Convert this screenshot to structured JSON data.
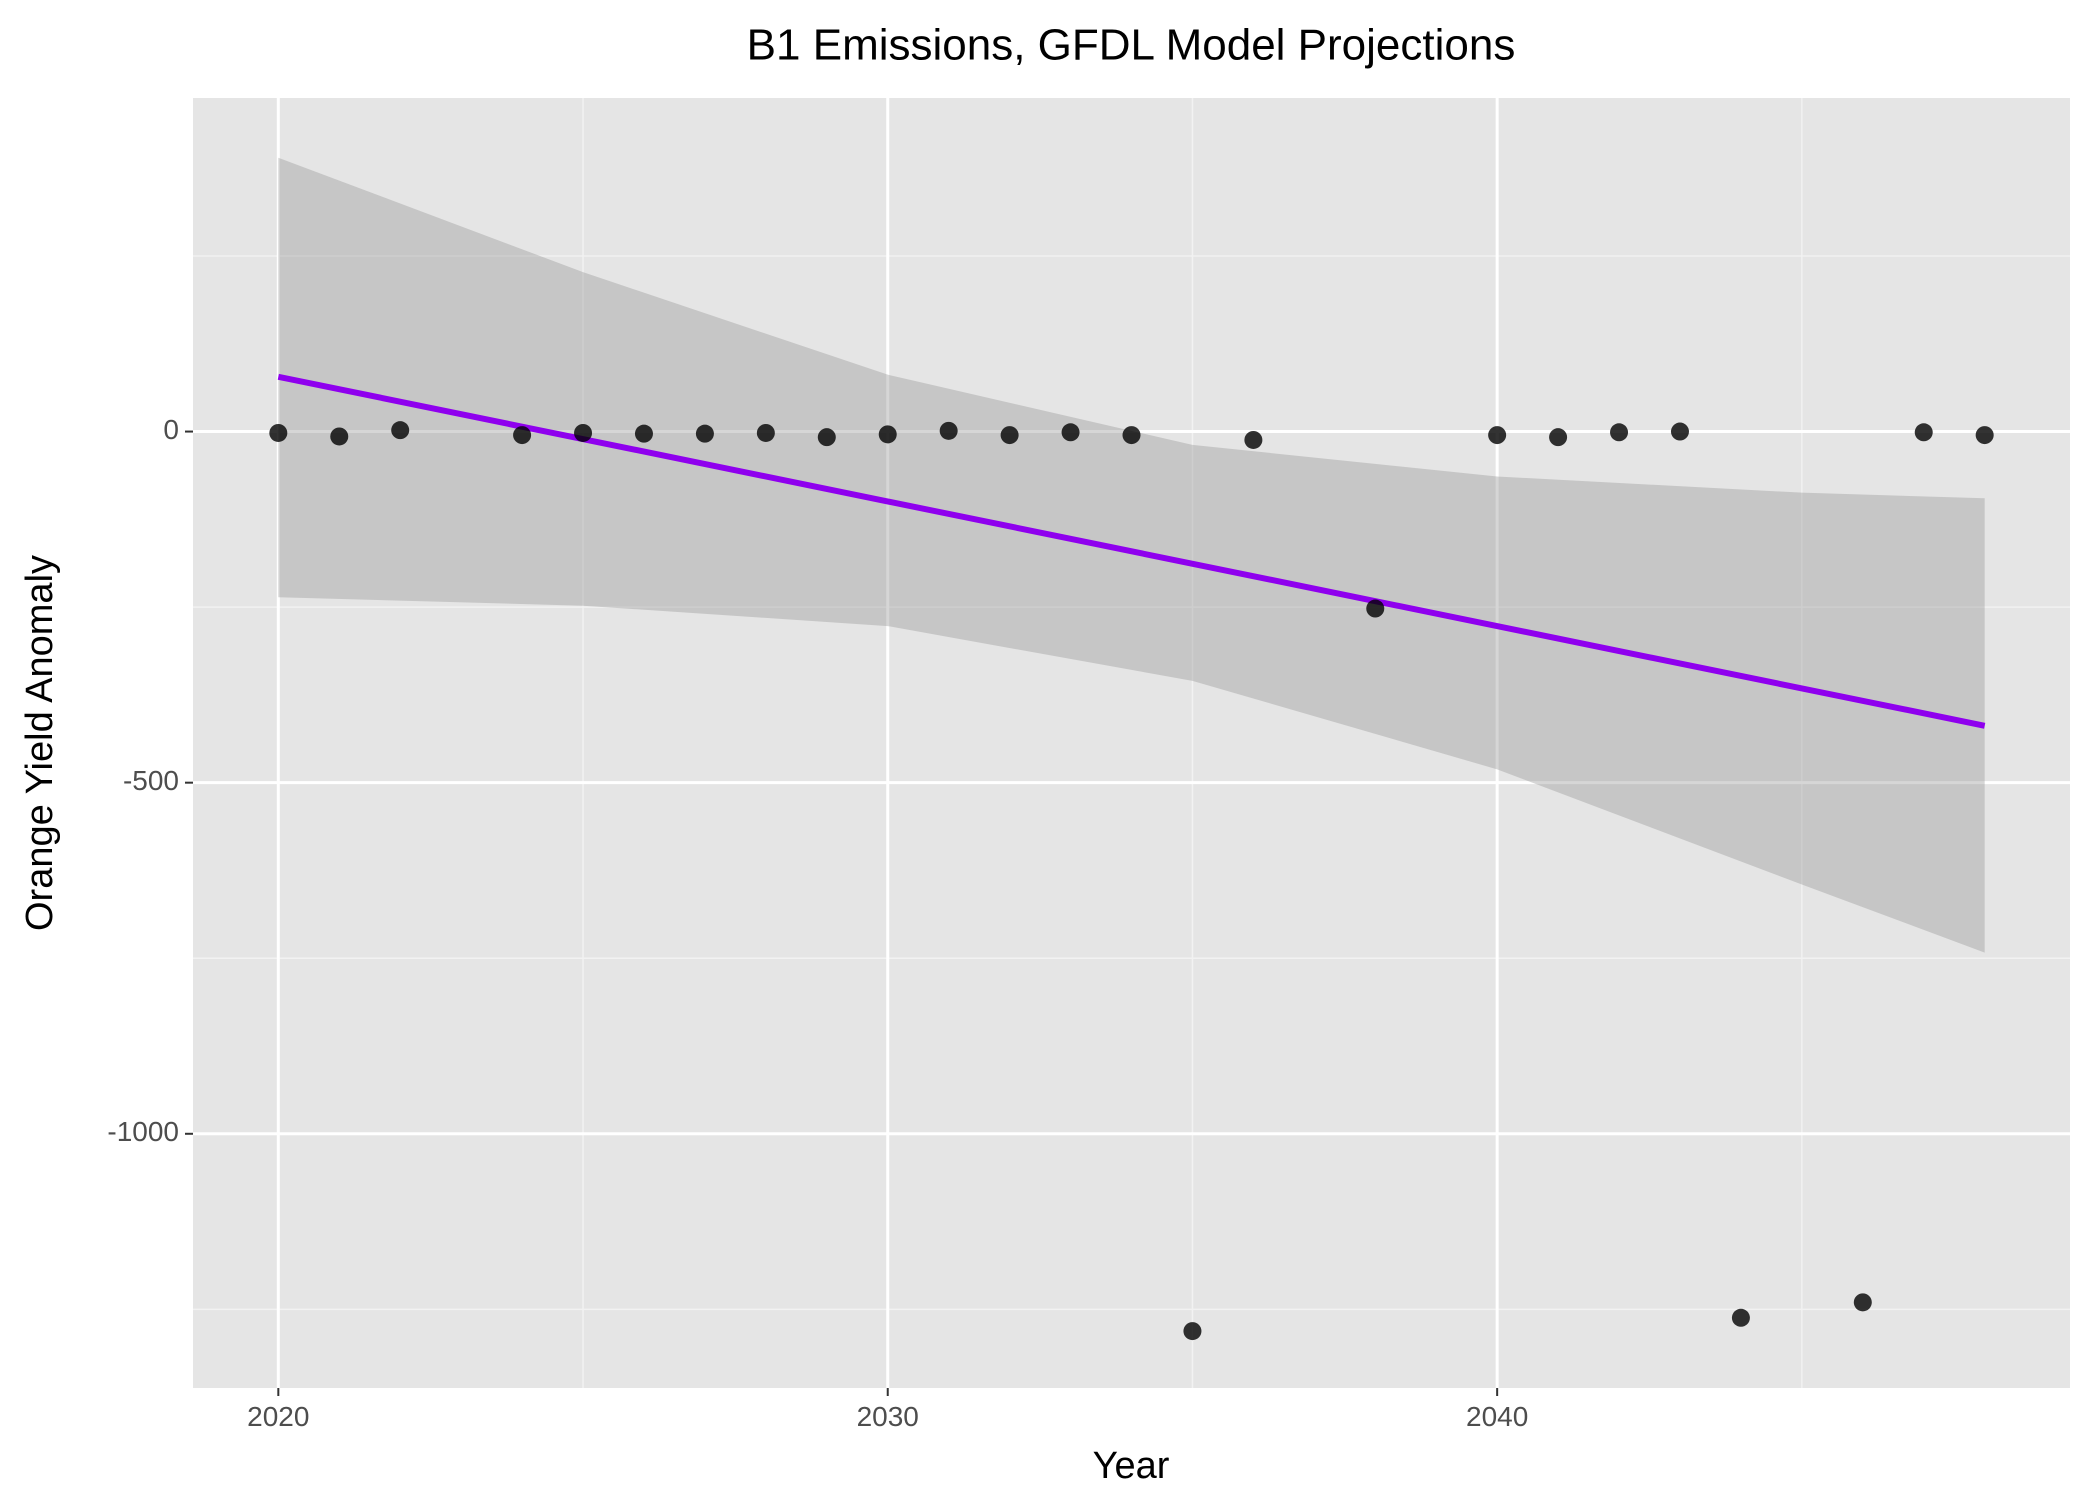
{
  "chart_data": {
    "type": "scatter",
    "title": "B1 Emissions, GFDL Model Projections",
    "xlabel": "Year",
    "ylabel": "Orange Yield Anomaly",
    "x": [
      2020,
      2021,
      2022,
      2024,
      2025,
      2026,
      2027,
      2028,
      2029,
      2030,
      2031,
      2032,
      2033,
      2034,
      2035,
      2036,
      2038,
      2040,
      2041,
      2042,
      2043,
      2044,
      2046,
      2047,
      2048
    ],
    "values": [
      -2,
      -7,
      2,
      -5,
      -2,
      -3,
      -3,
      -2,
      -8,
      -4,
      1,
      -5,
      -1,
      -5,
      -1281,
      -12,
      -252,
      -5,
      -8,
      -1,
      0,
      -1262,
      -1240,
      -1,
      -5
    ],
    "color": "#000000",
    "fit": {
      "x": [
        2020,
        2048
      ],
      "values": [
        78,
        -419
      ],
      "color": "#8f00ee"
    },
    "band": {
      "x": [
        2020,
        2025,
        2030,
        2035,
        2040,
        2045,
        2048
      ],
      "upper": [
        390,
        227,
        81,
        -19,
        -64,
        -87,
        -95
      ],
      "lower": [
        -236,
        -248,
        -277,
        -355,
        -481,
        -645,
        -742
      ],
      "color": "#999999"
    },
    "xlim": [
      2018.6,
      2049.4
    ],
    "ylim": [
      -1362,
      475
    ],
    "xticks": [
      2020,
      2030,
      2040
    ],
    "yticks": [
      -1000,
      -500,
      0
    ],
    "minor_xticks": [
      2025,
      2035,
      2045
    ],
    "minor_yticks": [
      -1250,
      -750,
      -250,
      250
    ],
    "grid": true
  }
}
